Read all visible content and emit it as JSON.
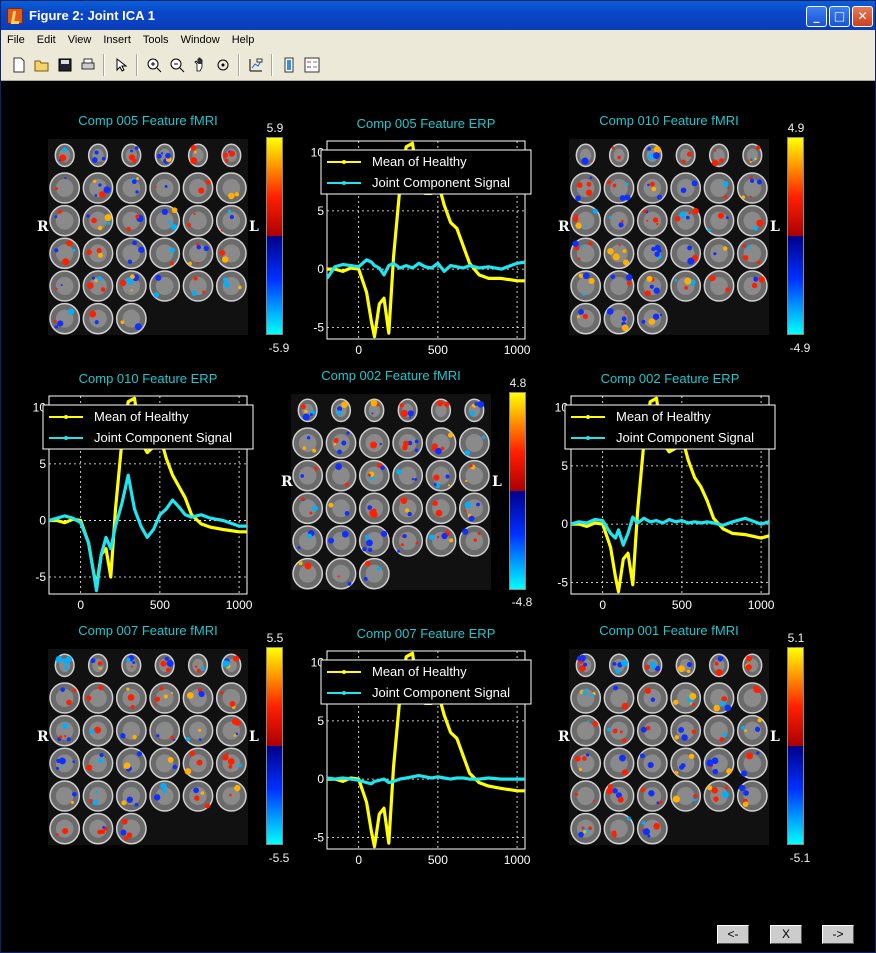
{
  "window": {
    "title": "Figure 2: Joint ICA 1",
    "minimize_label": "_",
    "maximize_label": "□",
    "close_label": "✕"
  },
  "menu": [
    "File",
    "Edit",
    "View",
    "Insert",
    "Tools",
    "Window",
    "Help"
  ],
  "toolbar_icons": [
    "new-file-icon",
    "open-folder-icon",
    "save-icon",
    "print-icon",
    "pointer-icon",
    "zoom-in-icon",
    "zoom-out-icon",
    "pan-hand-icon",
    "rotate-icon",
    "data-cursor-icon",
    "colorbar-icon",
    "legend-icon"
  ],
  "fmri_panels": [
    {
      "title": "Comp 005 Feature fMRI",
      "max": "5.9",
      "min": "-5.9",
      "left": "R",
      "right": "L"
    },
    {
      "title": "Comp 010 Feature fMRI",
      "max": "4.9",
      "min": "-4.9",
      "left": "R",
      "right": "L"
    },
    {
      "title": "Comp 002 Feature fMRI",
      "max": "4.8",
      "min": "-4.8",
      "left": "R",
      "right": "L"
    },
    {
      "title": "Comp 007 Feature fMRI",
      "max": "5.5",
      "min": "-5.5",
      "left": "R",
      "right": "L"
    },
    {
      "title": "Comp 001 Feature fMRI",
      "max": "5.1",
      "min": "-5.1",
      "left": "R",
      "right": "L"
    }
  ],
  "chart_data": [
    {
      "type": "line",
      "title": "Comp 005 Feature ERP",
      "xlim": [
        -200,
        1050
      ],
      "ylim": [
        -6,
        11
      ],
      "xticks": [
        "0",
        "500",
        "1000"
      ],
      "yticks": [
        "10",
        "5",
        "0",
        "-5"
      ],
      "legend": [
        "Mean of Healthy",
        "Joint Component Signal"
      ],
      "colors": [
        "#ffff00",
        "#1ee6f0"
      ],
      "x": [
        -200,
        -150,
        -100,
        -50,
        0,
        50,
        80,
        100,
        130,
        160,
        190,
        220,
        260,
        300,
        340,
        380,
        420,
        460,
        500,
        540,
        580,
        620,
        660,
        700,
        760,
        820,
        900,
        1000,
        1050
      ],
      "series": [
        {
          "name": "Mean of Healthy",
          "values": [
            0,
            0,
            -0.2,
            0.1,
            0,
            -2,
            -4.5,
            -5.8,
            -3,
            -2.5,
            -5.5,
            1,
            7,
            10.5,
            10.8,
            7,
            6.5,
            6.5,
            7.5,
            5.5,
            4,
            3.5,
            2,
            0.5,
            -0.5,
            -0.8,
            -0.8,
            -1,
            -1
          ]
        },
        {
          "name": "Joint Component Signal",
          "values": [
            -0.8,
            0.2,
            0.4,
            0.3,
            0.2,
            0.8,
            0.6,
            0.3,
            0.1,
            -0.5,
            0.3,
            0.5,
            0.1,
            0.3,
            0.1,
            0.5,
            0.2,
            0.1,
            0.5,
            -0.2,
            0.3,
            0.2,
            0.1,
            0.3,
            0.1,
            0.2,
            0,
            0.5,
            0.6
          ]
        }
      ]
    },
    {
      "type": "line",
      "title": "Comp 010 Feature ERP",
      "xlim": [
        -200,
        1050
      ],
      "ylim": [
        -6.5,
        11
      ],
      "xticks": [
        "0",
        "500",
        "1000"
      ],
      "yticks": [
        "10",
        "5",
        "0",
        "-5"
      ],
      "legend": [
        "Mean of Healthy",
        "Joint Component Signal"
      ],
      "colors": [
        "#ffff00",
        "#1ee6f0"
      ],
      "x": [
        -200,
        -150,
        -100,
        -50,
        0,
        50,
        80,
        100,
        130,
        160,
        190,
        220,
        260,
        300,
        340,
        380,
        420,
        460,
        500,
        540,
        580,
        620,
        660,
        700,
        760,
        820,
        900,
        1000,
        1050
      ],
      "series": [
        {
          "name": "Mean of Healthy",
          "values": [
            0,
            0,
            -0.2,
            0.1,
            0,
            -2,
            -4.5,
            -5.8,
            -3,
            -2.5,
            -5,
            1,
            7,
            10.5,
            10.8,
            7,
            6,
            6.5,
            7.5,
            5.5,
            4,
            3,
            2,
            0.5,
            -0.3,
            -0.6,
            -0.8,
            -1,
            -1
          ]
        },
        {
          "name": "Joint Component Signal",
          "values": [
            0,
            0.2,
            0.4,
            0.2,
            -0.2,
            -2,
            -4.5,
            -6.2,
            -3,
            -1.5,
            -2.5,
            -0.5,
            1.5,
            4,
            1,
            -0.5,
            -1.5,
            -0.8,
            0.5,
            1,
            1.8,
            1.2,
            0.5,
            0.3,
            0.5,
            0.2,
            0,
            -0.5,
            -0.5
          ]
        }
      ]
    },
    {
      "type": "line",
      "title": "Comp 002 Feature ERP",
      "xlim": [
        -200,
        1050
      ],
      "ylim": [
        -6,
        11
      ],
      "xticks": [
        "0",
        "500",
        "1000"
      ],
      "yticks": [
        "10",
        "5",
        "0",
        "-5"
      ],
      "legend": [
        "Mean of Healthy",
        "Joint Component Signal"
      ],
      "colors": [
        "#ffff00",
        "#1ee6f0"
      ],
      "x": [
        -200,
        -150,
        -100,
        -50,
        0,
        50,
        80,
        100,
        130,
        160,
        190,
        220,
        260,
        300,
        340,
        380,
        420,
        460,
        500,
        540,
        580,
        620,
        660,
        700,
        760,
        820,
        900,
        1000,
        1050
      ],
      "series": [
        {
          "name": "Mean of Healthy",
          "values": [
            0,
            0,
            -0.2,
            0.1,
            0,
            -2,
            -4.5,
            -5.8,
            -3,
            -2.5,
            -5.2,
            1,
            7,
            10.5,
            10.8,
            7,
            6.2,
            6.5,
            7.5,
            5.5,
            4,
            3.2,
            2,
            0.5,
            -0.4,
            -0.8,
            -0.9,
            -1.2,
            -1
          ]
        },
        {
          "name": "Joint Component Signal",
          "values": [
            0,
            0.2,
            0.1,
            0.4,
            0.3,
            -0.8,
            -1.2,
            -0.5,
            -1.8,
            -0.8,
            0.6,
            0.1,
            0.5,
            0.2,
            0.3,
            0.1,
            0.4,
            0.2,
            0.3,
            0.1,
            0.2,
            0.1,
            0.2,
            0.1,
            -0.1,
            0.2,
            0.5,
            0,
            0.2
          ]
        }
      ]
    },
    {
      "type": "line",
      "title": "Comp 007 Feature ERP",
      "xlim": [
        -200,
        1050
      ],
      "ylim": [
        -6,
        11
      ],
      "xticks": [
        "0",
        "500",
        "1000"
      ],
      "yticks": [
        "10",
        "5",
        "0",
        "-5"
      ],
      "legend": [
        "Mean of Healthy",
        "Joint Component Signal"
      ],
      "colors": [
        "#ffff00",
        "#1ee6f0"
      ],
      "x": [
        -200,
        -150,
        -100,
        -50,
        0,
        50,
        80,
        100,
        130,
        160,
        190,
        220,
        260,
        300,
        340,
        380,
        420,
        460,
        500,
        540,
        580,
        620,
        660,
        700,
        760,
        820,
        900,
        1000,
        1050
      ],
      "series": [
        {
          "name": "Mean of Healthy",
          "values": [
            0,
            0,
            -0.2,
            0.1,
            0,
            -2,
            -4.5,
            -5.8,
            -3,
            -2.5,
            -5.5,
            1,
            7,
            10.5,
            10.8,
            7,
            6.5,
            6.5,
            7.5,
            5.5,
            4,
            3.5,
            2,
            0.5,
            -0.3,
            -0.6,
            -0.8,
            -1,
            -1
          ]
        },
        {
          "name": "Joint Component Signal",
          "values": [
            0.1,
            0,
            0.1,
            0,
            -0.1,
            -0.3,
            -0.4,
            -0.2,
            -0.1,
            0,
            -0.3,
            -0.2,
            0,
            0.1,
            0.2,
            0.3,
            0.2,
            0.1,
            0.2,
            0.1,
            0,
            0.1,
            0.1,
            0,
            0,
            0.1,
            0,
            0,
            0
          ]
        }
      ]
    }
  ],
  "nav": {
    "prev": "<-",
    "close": "X",
    "next": "->"
  }
}
